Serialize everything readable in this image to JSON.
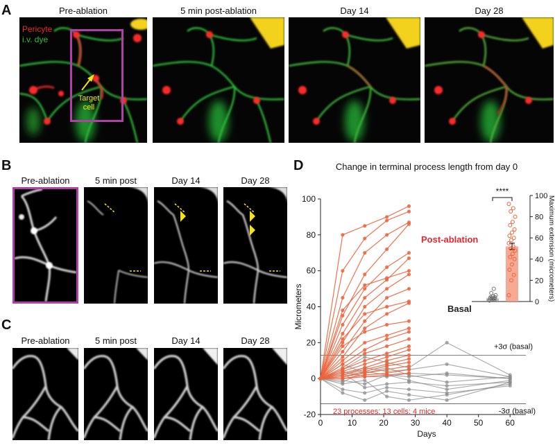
{
  "panelA": {
    "label": "A",
    "titles": [
      "Pre-ablation",
      "5 min post-ablation",
      "Day 14",
      "Day 28"
    ],
    "legend_pericyte": "Pericyte",
    "legend_dye": "i.v. dye",
    "target_label_1": "Target",
    "target_label_2": "cell",
    "colors": {
      "pericyte": "#e8262b",
      "dye": "#2fbf3a",
      "box": "#b040a8",
      "annot": "#f5e31a"
    }
  },
  "panelB": {
    "label": "B",
    "titles": [
      "Pre-ablation",
      "5 min post",
      "Day 14",
      "Day 28"
    ]
  },
  "panelC": {
    "label": "C",
    "titles": [
      "Pre-ablation",
      "5 min post",
      "Day 14",
      "Day 28"
    ]
  },
  "panelD": {
    "label": "D",
    "title": "Change in terminal process length from day 0",
    "ylabel": "Micrometers",
    "xlabel": "Days",
    "right_ylabel": "Maximum extension (micrometers)",
    "post_label": "Post-ablation",
    "basal_label": "Basal",
    "plus3": "+3σ (basal)",
    "minus3": "-3σ (basal)",
    "footnote": "23 processes; 13 cells; 4 mice",
    "significance": "****",
    "colors": {
      "post": "#f0623a",
      "basal": "#8a8a8a",
      "inset_post": "#f59a82"
    }
  },
  "chart_data": [
    {
      "type": "line",
      "title": "Change in terminal process length from day 0",
      "xlabel": "Days",
      "ylabel": "Micrometers",
      "xlim": [
        0,
        65
      ],
      "ylim": [
        -20,
        100
      ],
      "xticks": [
        0,
        10,
        20,
        30,
        40,
        50,
        60
      ],
      "yticks": [
        -20,
        0,
        20,
        40,
        60,
        80,
        100
      ],
      "reference_lines": [
        {
          "label": "+3σ (basal)",
          "y": 13
        },
        {
          "label": "-3σ (basal)",
          "y": -14
        }
      ],
      "series": [
        {
          "name": "Post-ablation",
          "x": [
            0,
            7,
            14,
            21,
            28
          ],
          "traces": [
            [
              0,
              80,
              85,
              90,
              96
            ],
            [
              0,
              60,
              78,
              88,
              93
            ],
            [
              0,
              45,
              70,
              80,
              87
            ],
            [
              0,
              35,
              58,
              72,
              86
            ],
            [
              0,
              30,
              50,
              62,
              70
            ],
            [
              0,
              25,
              45,
              55,
              67
            ],
            [
              0,
              38,
              52,
              56,
              60
            ],
            [
              0,
              20,
              40,
              50,
              58
            ],
            [
              0,
              15,
              32,
              45,
              50
            ],
            [
              0,
              22,
              36,
              40,
              43
            ],
            [
              0,
              12,
              28,
              36,
              42
            ],
            [
              0,
              18,
              26,
              30,
              32
            ],
            [
              0,
              10,
              20,
              24,
              28
            ],
            [
              0,
              8,
              16,
              22,
              26
            ],
            [
              0,
              6,
              14,
              18,
              22
            ],
            [
              0,
              5,
              10,
              14,
              18
            ],
            [
              0,
              4,
              8,
              12,
              16
            ],
            [
              0,
              3,
              6,
              10,
              13
            ],
            [
              0,
              2,
              5,
              8,
              11
            ],
            [
              0,
              1,
              4,
              7,
              9
            ],
            [
              0,
              1,
              3,
              5,
              7
            ],
            [
              0,
              0,
              2,
              3,
              5
            ],
            [
              0,
              0,
              1,
              2,
              3
            ]
          ]
        },
        {
          "name": "Basal",
          "x": [
            0,
            7,
            14,
            21,
            28,
            40,
            60
          ],
          "traces": [
            [
              0,
              5,
              12,
              9,
              6,
              20,
              2
            ],
            [
              0,
              -2,
              4,
              2,
              1,
              3,
              0
            ],
            [
              0,
              3,
              -5,
              -3,
              -2,
              -4,
              -2
            ],
            [
              0,
              -6,
              -8,
              -5,
              -6,
              -8,
              -4
            ],
            [
              0,
              2,
              6,
              4,
              5,
              8,
              1
            ],
            [
              0,
              -3,
              -1,
              -10,
              -12,
              -9,
              -3
            ],
            [
              0,
              8,
              3,
              6,
              2,
              -2,
              1
            ],
            [
              0,
              -8,
              -12,
              -7,
              -9,
              -12,
              -2
            ],
            [
              0,
              4,
              1,
              1,
              3,
              2,
              0
            ],
            [
              0,
              -1,
              -3,
              2,
              -1,
              -6,
              -1
            ]
          ]
        }
      ]
    },
    {
      "type": "bar",
      "ylabel": "Maximum extension (micrometers)",
      "ylim": [
        0,
        100
      ],
      "yticks": [
        0,
        20,
        40,
        60,
        80,
        100
      ],
      "categories": [
        "Basal",
        "Post-ablation"
      ],
      "values": [
        3,
        52
      ],
      "error": [
        1,
        3
      ],
      "significance": "****",
      "points": [
        [
          1,
          2,
          2,
          3,
          3,
          4,
          4,
          5,
          6,
          8,
          12,
          1,
          2,
          3
        ],
        [
          6,
          20,
          25,
          30,
          35,
          40,
          42,
          45,
          48,
          50,
          52,
          55,
          58,
          60,
          62,
          65,
          68,
          72,
          75,
          80,
          85,
          88,
          92
        ]
      ]
    }
  ]
}
